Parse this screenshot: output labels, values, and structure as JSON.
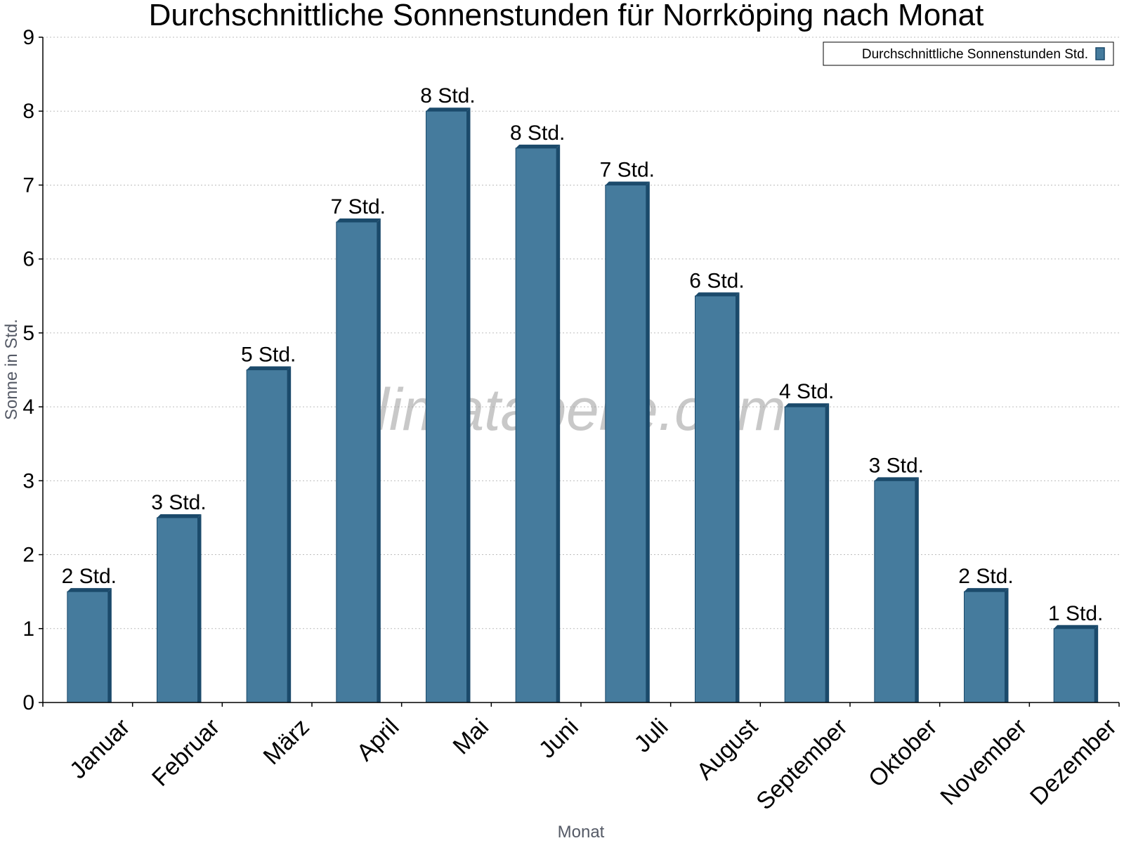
{
  "chart_data": {
    "type": "bar",
    "title": "Durchschnittliche Sonnenstunden für Norrköping nach Monat",
    "xlabel": "Monat",
    "ylabel": "Sonne in Std.",
    "ylim": [
      0,
      9
    ],
    "yticks": [
      0,
      1,
      2,
      3,
      4,
      5,
      6,
      7,
      8,
      9
    ],
    "grid": true,
    "legend_position": "top-right",
    "categories": [
      "Januar",
      "Februar",
      "März",
      "April",
      "Mai",
      "Juni",
      "Juli",
      "August",
      "September",
      "Oktober",
      "November",
      "Dezember"
    ],
    "series": [
      {
        "name": "Durchschnittliche Sonnenstunden Std.",
        "values": [
          1.5,
          2.5,
          4.5,
          6.5,
          8.0,
          7.5,
          7.0,
          5.5,
          4.0,
          3.0,
          1.5,
          1.0
        ],
        "labels": [
          "2 Std.",
          "3 Std.",
          "5 Std.",
          "7 Std.",
          "8 Std.",
          "8 Std.",
          "7 Std.",
          "6 Std.",
          "4 Std.",
          "3 Std.",
          "2 Std.",
          "1 Std."
        ],
        "color": "#457b9d",
        "edge_color": "#1b4a6b"
      }
    ],
    "watermark": "klimatabelle.com"
  }
}
